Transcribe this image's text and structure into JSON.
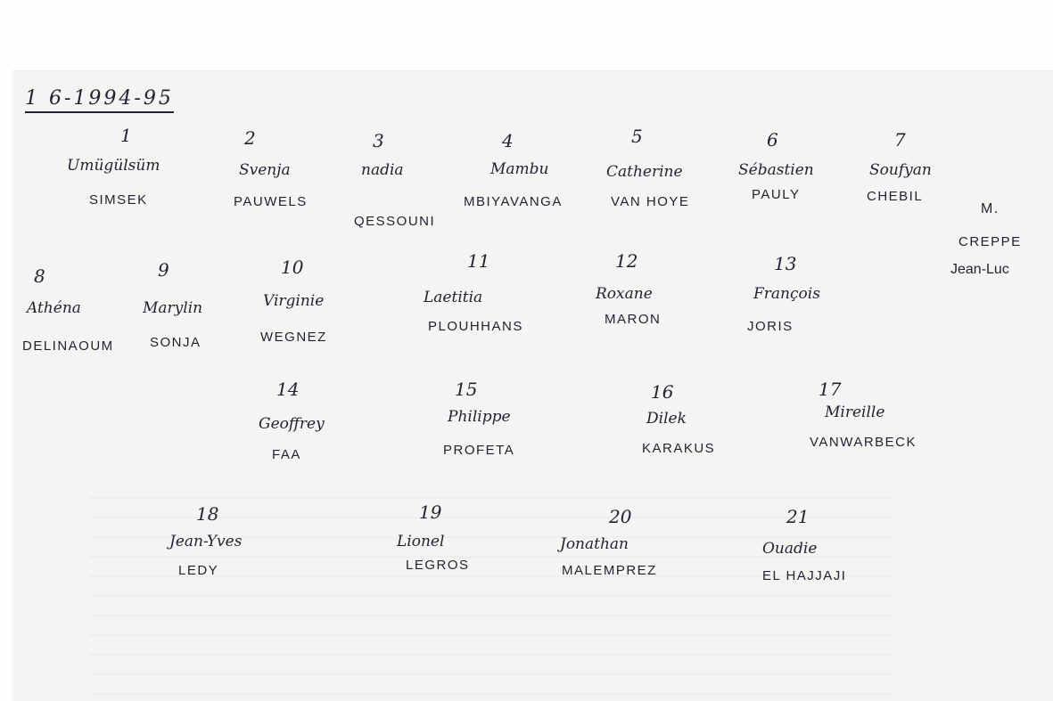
{
  "title": "1 6-1994-95",
  "teacher": {
    "prefix": "M.",
    "last": "CREPPE",
    "first": "Jean-Luc"
  },
  "students": [
    {
      "number": "1",
      "first": "Umügülsüm",
      "last": "SIMSEK"
    },
    {
      "number": "2",
      "first": "Svenja",
      "last": "PAUWELS"
    },
    {
      "number": "3",
      "first": "nadia",
      "last": "QESSOUNI"
    },
    {
      "number": "4",
      "first": "Mambu",
      "last": "MBIYAVANGA"
    },
    {
      "number": "5",
      "first": "Catherine",
      "last": "VAN HOYE"
    },
    {
      "number": "6",
      "first": "Sébastien",
      "last": "PAULY"
    },
    {
      "number": "7",
      "first": "Soufyan",
      "last": "CHEBIL"
    },
    {
      "number": "8",
      "first": "Athéna",
      "last": "DELINAOUM"
    },
    {
      "number": "9",
      "first": "Marylin",
      "last": "SONJA"
    },
    {
      "number": "10",
      "first": "Virginie",
      "last": "WEGNEZ"
    },
    {
      "number": "11",
      "first": "Laetitia",
      "last": "PLOUHHANS"
    },
    {
      "number": "12",
      "first": "Roxane",
      "last": "MARON"
    },
    {
      "number": "13",
      "first": "François",
      "last": "JORIS"
    },
    {
      "number": "14",
      "first": "Geoffrey",
      "last": "FAA"
    },
    {
      "number": "15",
      "first": "Philippe",
      "last": "PROFETA"
    },
    {
      "number": "16",
      "first": "Dilek",
      "last": "KARAKUS"
    },
    {
      "number": "17",
      "first": "Mireille",
      "last": "VANWARBECK"
    },
    {
      "number": "18",
      "first": "Jean-Yves",
      "last": "LEDY"
    },
    {
      "number": "19",
      "first": "Lionel",
      "last": "LEGROS"
    },
    {
      "number": "20",
      "first": "Jonathan",
      "last": "MALEMPREZ"
    },
    {
      "number": "21",
      "first": "Ouadie",
      "last": "EL HAJJAJI"
    }
  ]
}
